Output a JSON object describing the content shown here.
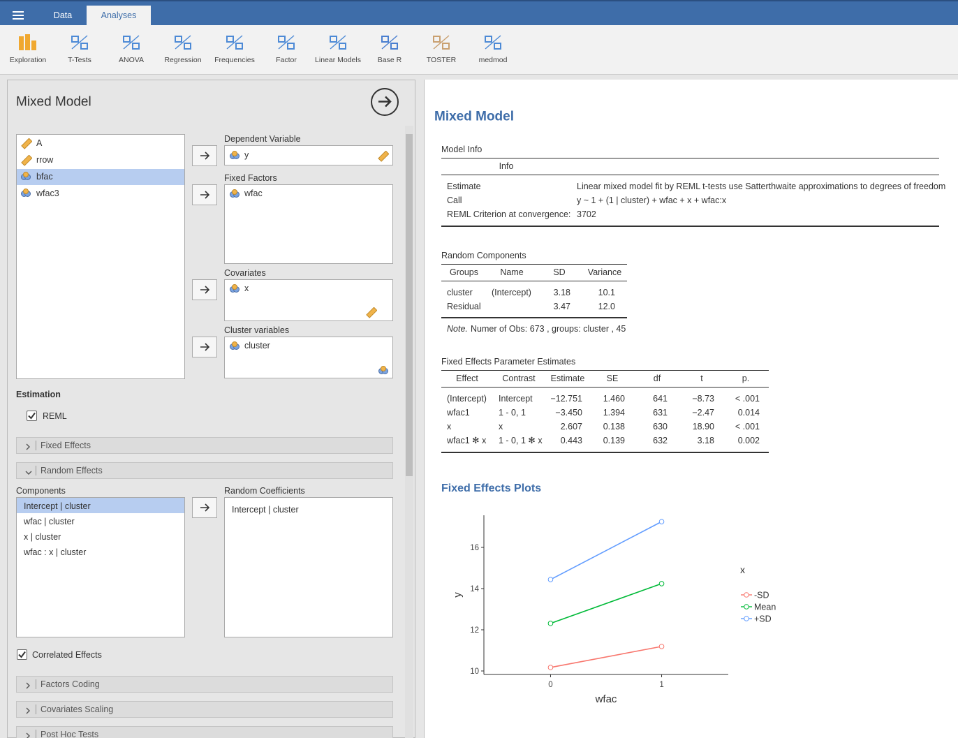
{
  "tabs": [
    "Data",
    "Analyses"
  ],
  "ribbon": [
    "Exploration",
    "T-Tests",
    "ANOVA",
    "Regression",
    "Frequencies",
    "Factor",
    "Linear Models",
    "Base R",
    "TOSTER",
    "medmod"
  ],
  "panel": {
    "title": "Mixed Model",
    "variables": [
      "A",
      "rrow",
      "bfac",
      "wfac3"
    ],
    "dependent_label": "Dependent Variable",
    "dependent": "y",
    "factors_label": "Fixed Factors",
    "factors": [
      "wfac"
    ],
    "covariates_label": "Covariates",
    "covariates": [
      "x"
    ],
    "cluster_label": "Cluster variables",
    "cluster": [
      "cluster"
    ],
    "estimation": "Estimation",
    "reml": "REML",
    "fixed_effects": "Fixed Effects",
    "random_effects": "Random Effects",
    "components_label": "Components",
    "components": [
      "Intercept | cluster",
      "wfac | cluster",
      "x | cluster",
      "wfac : x | cluster"
    ],
    "coefficients_label": "Random Coefficients",
    "coefficients": [
      "Intercept | cluster"
    ],
    "correlated": "Correlated Effects",
    "more_sections": [
      "Factors Coding",
      "Covariates Scaling",
      "Post Hoc Tests"
    ]
  },
  "results": {
    "title": "Mixed Model",
    "model_info": {
      "title": "Model Info",
      "header": "Info",
      "rows": [
        [
          "Estimate",
          "Linear mixed model fit by REML t-tests use Satterthwaite approximations to degrees of freedom"
        ],
        [
          "Call",
          "y ~ 1 + (1 | cluster) + wfac + x + wfac:x"
        ],
        [
          "REML Criterion at convergence:",
          "3702"
        ]
      ]
    },
    "random": {
      "title": "Random Components",
      "columns": [
        "Groups",
        "Name",
        "SD",
        "Variance"
      ],
      "rows": [
        [
          "cluster",
          "(Intercept)",
          "3.18",
          "10.1"
        ],
        [
          "Residual",
          null,
          "3.47",
          "12.0"
        ]
      ],
      "note_label": "Note.",
      "note": "Numer of Obs: 673 , groups: cluster , 45"
    },
    "fixed": {
      "title": "Fixed Effects Parameter Estimates",
      "columns": [
        "Effect",
        "Contrast",
        "Estimate",
        "SE",
        "df",
        "t",
        "p."
      ],
      "rows": [
        [
          "(Intercept)",
          "Intercept",
          "−12.751",
          "1.460",
          "641",
          "−8.73",
          "< .001"
        ],
        [
          "wfac1",
          "1 - 0, 1",
          "−3.450",
          "1.394",
          "631",
          "−2.47",
          "0.014"
        ],
        [
          "x",
          "x",
          "2.607",
          "0.138",
          "630",
          "18.90",
          "< .001"
        ],
        [
          "wfac1 ✻ x",
          "1 - 0, 1 ✻ x",
          "0.443",
          "0.139",
          "632",
          "3.18",
          "0.002"
        ]
      ]
    },
    "plots_title": "Fixed Effects Plots"
  },
  "chart_data": {
    "type": "line",
    "categories": [
      "0",
      "1"
    ],
    "x_label": "wfac",
    "y_label": "y",
    "legend_title": "x",
    "series": [
      {
        "name": "-SD",
        "color": "#f8766d",
        "values": [
          10.17,
          11.19
        ]
      },
      {
        "name": "Mean",
        "color": "#00ba38",
        "values": [
          12.31,
          14.24
        ]
      },
      {
        "name": "+SD",
        "color": "#619cff",
        "values": [
          14.44,
          17.25
        ]
      }
    ],
    "ylim": [
      9.83,
      17.56
    ],
    "yticks": [
      10,
      12,
      14,
      16
    ]
  }
}
